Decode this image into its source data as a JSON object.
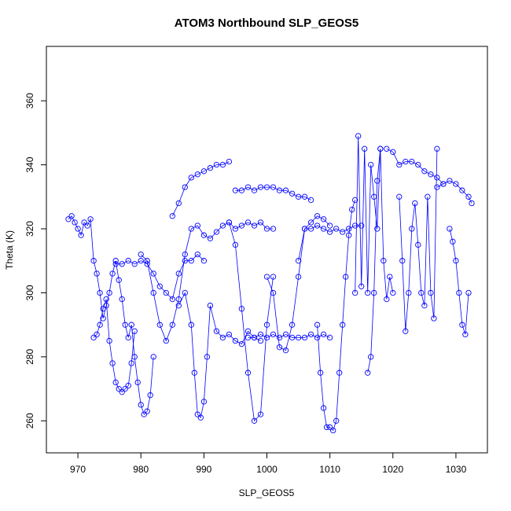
{
  "chart_data": {
    "type": "scatter",
    "title": "ATOM3 Northbound SLP_GEOS5",
    "xlabel": "SLP_GEOS5",
    "ylabel": "Theta (K)",
    "xlim": [
      965,
      1035
    ],
    "ylim": [
      250,
      377
    ],
    "xticks": [
      970,
      980,
      990,
      1000,
      1010,
      1020,
      1030
    ],
    "yticks": [
      260,
      280,
      300,
      320,
      340,
      360
    ],
    "xtick_labels": [
      "970",
      "980",
      "990",
      "1000",
      "1010",
      "1020",
      "1030"
    ],
    "ytick_labels": [
      "260",
      "280",
      "300",
      "320",
      "340",
      "360"
    ],
    "grid": false,
    "series_color": "#0000ff",
    "series": [
      {
        "x": [
          968.5,
          969,
          969.5,
          970,
          970.5,
          971,
          971.5,
          972,
          972.5,
          973,
          973.5,
          974,
          974.5,
          975,
          975.5,
          976,
          976.5,
          977,
          977.5,
          978,
          978.5,
          979,
          979.5,
          980,
          980.5,
          981,
          981.5,
          982
        ],
        "y": [
          323,
          324,
          322,
          320,
          318,
          322,
          321,
          323,
          310,
          306,
          300,
          292,
          296,
          300,
          306,
          310,
          304,
          298,
          290,
          286,
          290,
          280,
          272,
          265,
          262,
          263,
          268,
          280
        ]
      },
      {
        "x": [
          972.5,
          973,
          973.5,
          974,
          974.5,
          975,
          975.5,
          976,
          976.5,
          977,
          977.5,
          978,
          978.5,
          979
        ],
        "y": [
          286,
          287,
          290,
          295,
          298,
          285,
          278,
          272,
          270,
          269,
          270,
          271,
          278,
          288
        ]
      },
      {
        "x": [
          976,
          977,
          978,
          979,
          980,
          981,
          982,
          983,
          984,
          985,
          986,
          987,
          988,
          989,
          990
        ],
        "y": [
          309,
          309,
          310,
          309,
          310,
          309,
          306,
          302,
          300,
          298,
          306,
          310,
          310,
          312,
          310
        ]
      },
      {
        "x": [
          980,
          981,
          982,
          983,
          984,
          985,
          986,
          987,
          988,
          989,
          990,
          991,
          992,
          993,
          994,
          995,
          996,
          997,
          998,
          999,
          1000,
          1001
        ],
        "y": [
          312,
          310,
          300,
          290,
          285,
          290,
          298,
          312,
          320,
          321,
          318,
          317,
          319,
          321,
          322,
          320,
          321,
          322,
          321,
          322,
          320,
          320
        ]
      },
      {
        "x": [
          985,
          986,
          987,
          988,
          989,
          990,
          991,
          992,
          993,
          994
        ],
        "y": [
          324,
          328,
          333,
          336,
          337,
          338,
          339,
          340,
          340,
          341
        ]
      },
      {
        "x": [
          986,
          987,
          988,
          988.5,
          989,
          989.5,
          990,
          990.5,
          991,
          992,
          993,
          994,
          995,
          996,
          997,
          998,
          999
        ],
        "y": [
          296,
          300,
          290,
          275,
          262,
          261,
          266,
          280,
          296,
          288,
          286,
          287,
          285,
          284,
          288,
          286,
          285
        ]
      },
      {
        "x": [
          995,
          996,
          997,
          998,
          999,
          1000,
          1001,
          1002,
          1003,
          1004,
          1005,
          1006,
          1007
        ],
        "y": [
          332,
          332,
          333,
          332,
          333,
          333,
          333,
          332,
          332,
          331,
          330,
          330,
          329
        ]
      },
      {
        "x": [
          997,
          998,
          999,
          1000,
          1001,
          1002,
          1003,
          1004,
          1005,
          1006,
          1007,
          1008,
          1009,
          1010
        ],
        "y": [
          286,
          286,
          287,
          286,
          287,
          286,
          287,
          286,
          286,
          286,
          287,
          286,
          287,
          286
        ]
      },
      {
        "x": [
          994,
          995,
          996,
          997,
          998,
          999,
          1000,
          1001
        ],
        "y": [
          322,
          315,
          295,
          275,
          260,
          262,
          290,
          305
        ]
      },
      {
        "x": [
          1000,
          1001,
          1002,
          1003,
          1004,
          1005,
          1006,
          1007,
          1008,
          1009,
          1010
        ],
        "y": [
          305,
          300,
          283,
          282,
          290,
          305,
          320,
          322,
          324,
          323,
          321
        ]
      },
      {
        "x": [
          1008,
          1008.5,
          1009,
          1009.5,
          1010,
          1010.5,
          1011,
          1011.5,
          1012,
          1012.5,
          1013,
          1013.5,
          1014
        ],
        "y": [
          290,
          275,
          264,
          258,
          258,
          257,
          260,
          275,
          290,
          305,
          318,
          326,
          329
        ]
      },
      {
        "x": [
          1005,
          1006,
          1007,
          1008,
          1009,
          1010,
          1011,
          1012,
          1013,
          1014,
          1015
        ],
        "y": [
          310,
          320,
          320,
          321,
          320,
          319,
          320,
          319,
          320,
          321,
          321
        ]
      },
      {
        "x": [
          1014,
          1014.5,
          1015,
          1015.5,
          1016,
          1016.5,
          1017,
          1017.5,
          1018
        ],
        "y": [
          300,
          349,
          302,
          345,
          300,
          340,
          330,
          320,
          345
        ]
      },
      {
        "x": [
          1016,
          1016.5,
          1017,
          1017.5,
          1018,
          1018.5,
          1019,
          1019.5,
          1020
        ],
        "y": [
          275,
          280,
          300,
          335,
          345,
          310,
          298,
          305,
          300
        ]
      },
      {
        "x": [
          1019,
          1020,
          1021,
          1022,
          1023,
          1024,
          1025,
          1026,
          1027,
          1028
        ],
        "y": [
          345,
          344,
          340,
          341,
          341,
          340,
          338,
          337,
          336,
          334
        ]
      },
      {
        "x": [
          1021,
          1021.5,
          1022,
          1022.5,
          1023,
          1023.5,
          1024,
          1024.5,
          1025,
          1025.5,
          1026,
          1026.5,
          1027
        ],
        "y": [
          330,
          310,
          288,
          300,
          320,
          328,
          315,
          300,
          296,
          330,
          300,
          292,
          345
        ]
      },
      {
        "x": [
          1027,
          1028,
          1029,
          1030,
          1031,
          1032,
          1032.5
        ],
        "y": [
          333,
          334,
          335,
          334,
          332,
          330,
          328
        ]
      },
      {
        "x": [
          1029,
          1029.5,
          1030,
          1030.5,
          1031,
          1031.5,
          1032
        ],
        "y": [
          320,
          316,
          310,
          300,
          290,
          287,
          300
        ]
      }
    ]
  }
}
